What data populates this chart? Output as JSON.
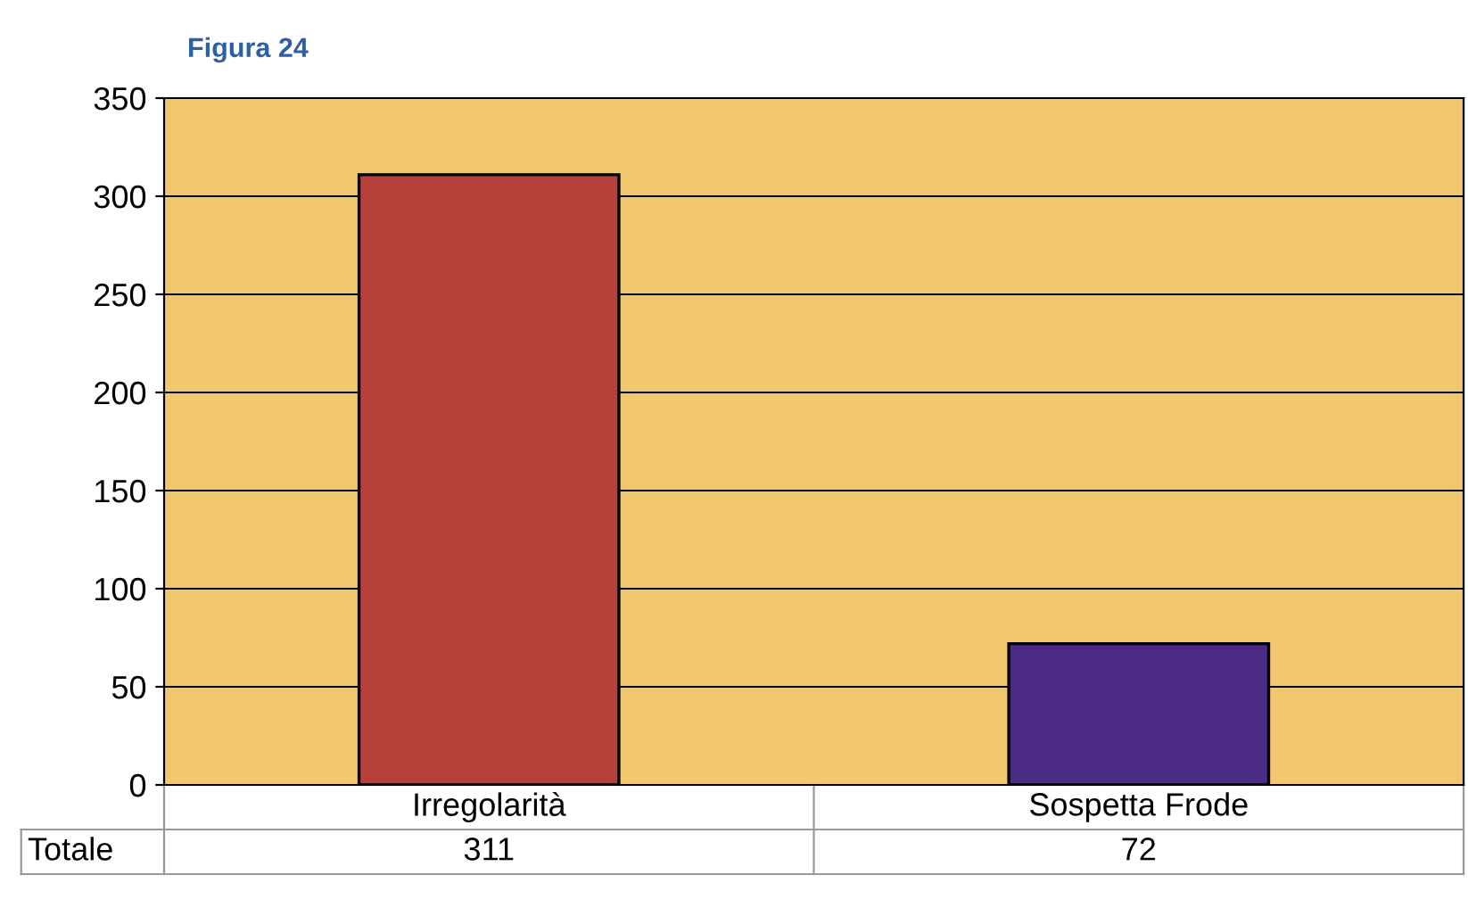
{
  "chart_data": {
    "type": "bar",
    "title": "Figura 24",
    "categories": [
      "Irregolarità",
      "Sospetta Frode"
    ],
    "values": [
      311,
      72
    ],
    "colors": [
      "#b5413a",
      "#4b2a85"
    ],
    "ylim": [
      0,
      350
    ],
    "yticks": [
      0,
      50,
      100,
      150,
      200,
      250,
      300,
      350
    ],
    "grid": "y",
    "data_labels": true,
    "annotations": [
      "Totale"
    ]
  }
}
